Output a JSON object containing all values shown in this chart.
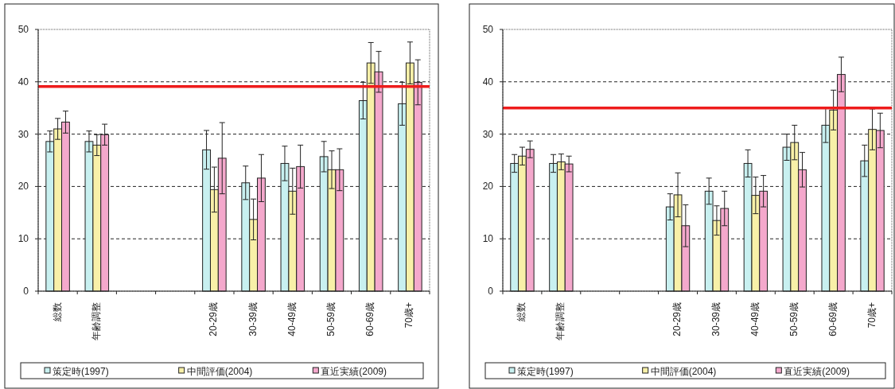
{
  "chart_data": [
    {
      "type": "bar",
      "categories": [
        "総数",
        "年齢調整",
        null,
        null,
        "20-29歳",
        "30-39歳",
        "40-49歳",
        "50-59歳",
        "60-69歳",
        "70歳+"
      ],
      "series": [
        {
          "name": "策定時(1997)",
          "color": "#c8f0f0",
          "values": [
            28.6,
            28.6,
            null,
            null,
            27.0,
            20.7,
            24.4,
            25.7,
            36.4,
            35.8
          ],
          "errors": [
            2,
            2,
            null,
            null,
            3.7,
            3.2,
            3.3,
            2.9,
            3.5,
            4.1
          ]
        },
        {
          "name": "中間評価(2004)",
          "color": "#f8f0a8",
          "values": [
            31.0,
            27.9,
            null,
            null,
            19.4,
            13.7,
            19.1,
            23.2,
            43.6,
            43.6
          ],
          "errors": [
            2,
            2,
            null,
            null,
            4.3,
            3.9,
            4.4,
            3.6,
            3.9,
            4
          ]
        },
        {
          "name": "直近実績(2009)",
          "color": "#f4a8cc",
          "values": [
            32.3,
            29.9,
            null,
            null,
            25.4,
            21.6,
            23.8,
            23.2,
            41.9,
            39.9
          ],
          "errors": [
            2.1,
            2,
            null,
            null,
            6.8,
            4.5,
            4.1,
            4,
            3.9,
            4.3
          ]
        }
      ],
      "ylim": [
        0,
        50
      ],
      "yticks": [
        0,
        10,
        20,
        30,
        40,
        50
      ],
      "grid": "y",
      "legend": "bottom",
      "ref_lines": [
        {
          "axis": "y",
          "value": 39.1,
          "color": "#ee1c1c",
          "line_style": "solid"
        }
      ]
    },
    {
      "type": "bar",
      "categories": [
        "総数",
        "年齢調整",
        null,
        null,
        "20-29歳",
        "30-39歳",
        "40-49歳",
        "50-59歳",
        "60-69歳",
        "70歳+"
      ],
      "series": [
        {
          "name": "策定時(1997)",
          "color": "#c8f0f0",
          "values": [
            24.4,
            24.4,
            null,
            null,
            16.1,
            19.1,
            24.4,
            27.5,
            31.7,
            24.9
          ],
          "errors": [
            1.7,
            1.7,
            null,
            null,
            2.5,
            2.5,
            2.6,
            2.5,
            3.3,
            3
          ]
        },
        {
          "name": "中間評価(2004)",
          "color": "#f8f0a8",
          "values": [
            25.8,
            24.7,
            null,
            null,
            18.4,
            13.5,
            18.3,
            28.4,
            34.6,
            30.9
          ],
          "errors": [
            1.7,
            1.5,
            null,
            null,
            4.2,
            2.8,
            3.5,
            3.3,
            3.8,
            3.9
          ]
        },
        {
          "name": "直近実績(2009)",
          "color": "#f4a8cc",
          "values": [
            27.1,
            24.3,
            null,
            null,
            12.5,
            15.8,
            19.1,
            23.2,
            41.4,
            30.7
          ],
          "errors": [
            1.6,
            1.5,
            null,
            null,
            4,
            3.3,
            3,
            3.3,
            3.3,
            3.3
          ]
        }
      ],
      "ylim": [
        0,
        50
      ],
      "yticks": [
        0,
        10,
        20,
        30,
        40,
        50
      ],
      "grid": "y",
      "legend": "bottom",
      "ref_lines": [
        {
          "axis": "y",
          "value": 35,
          "color": "#ee1c1c",
          "line_style": "solid"
        }
      ]
    }
  ]
}
